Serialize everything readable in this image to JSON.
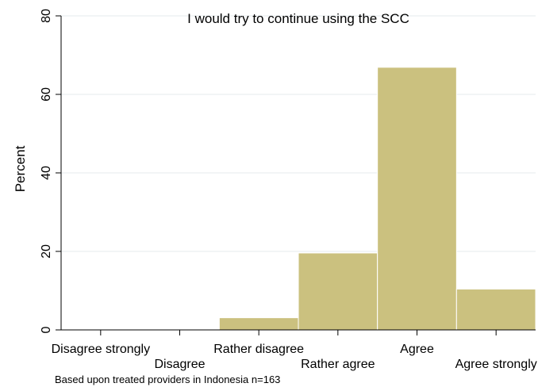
{
  "chart_data": {
    "type": "bar",
    "title": "I would try to continue using the SCC",
    "ylabel": "Percent",
    "xlabel": "",
    "categories": [
      "Disagree strongly",
      "Disagree",
      "Rather disagree",
      "Rather agree",
      "Agree",
      "Agree strongly"
    ],
    "values": [
      0,
      0,
      3.1,
      19.6,
      66.9,
      10.4
    ],
    "ylim": [
      0,
      80
    ],
    "yticks": [
      "0",
      "20",
      "40",
      "60",
      "80"
    ],
    "grid": true,
    "legend": "none",
    "note": "Based upon treated providers in Indonesia n=163",
    "colors": {
      "bar_fill": "#cbc17f",
      "bar_stroke": "#ffffff",
      "grid": "#e6ebee",
      "axis": "#000000"
    }
  }
}
